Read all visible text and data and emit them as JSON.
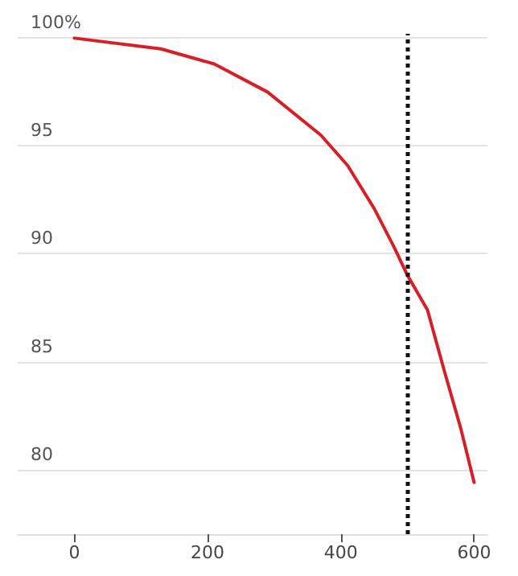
{
  "chart_data": {
    "type": "line",
    "x": [
      0,
      130,
      210,
      290,
      370,
      410,
      450,
      480,
      500,
      530,
      555,
      580,
      600
    ],
    "series": [
      {
        "color": "#d61f26",
        "values": [
          100,
          99.5,
          98.8,
          97.5,
          95.5,
          94.1,
          92.1,
          90.3,
          89,
          87.4,
          84.6,
          81.9,
          79.4
        ]
      }
    ],
    "xlim": [
      -85,
      620
    ],
    "xticks": [
      0,
      200,
      400,
      600
    ],
    "ylim": [
      77,
      100.2
    ],
    "yticks": [
      80,
      85,
      90,
      95,
      {
        "value": 100,
        "label": "100%"
      }
    ],
    "ref_lines": [
      {
        "axis": "x",
        "value": 500,
        "color": "#111111",
        "line_style": "dotted"
      }
    ],
    "grid": "y",
    "marker": "none",
    "line_style": "solid"
  }
}
